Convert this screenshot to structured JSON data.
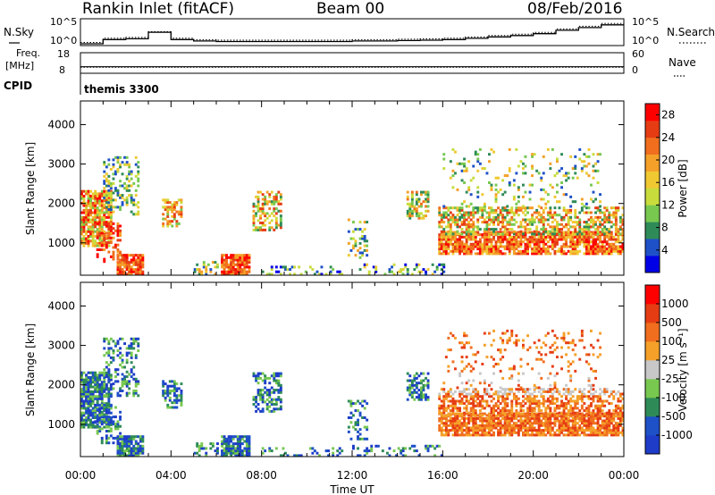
{
  "header": {
    "station": "Rankin Inlet (fitACF)",
    "beam": "Beam 00",
    "date": "08/Feb/2016"
  },
  "top_panels": {
    "nsky_label": "N.Sky",
    "nsky_ticks": [
      "10^5",
      "10^0"
    ],
    "nsearch_label": "N.Search",
    "nsearch_ticks": [
      "10^5",
      "10^0"
    ],
    "freq_label_1": "Freq.",
    "freq_label_2": "[MHz]",
    "freq_ticks": [
      "18",
      "8"
    ],
    "nave_label": "Nave",
    "nave_ticks": [
      "60",
      "0"
    ],
    "cpid_label": "CPID",
    "cpid_value": "themis 3300"
  },
  "colors": {
    "power_scale": [
      "#0000e6",
      "#1e50c8",
      "#2e8b57",
      "#78c850",
      "#c8dc3c",
      "#f0c832",
      "#f5a028",
      "#f06e1e",
      "#e63c14",
      "#ff0000"
    ],
    "velocity_scale": [
      "#1e3cc8",
      "#1e50c8",
      "#2e8b57",
      "#78c850",
      "#c8c8c8",
      "#f5a028",
      "#f06e1e",
      "#e63c14",
      "#ff0000"
    ],
    "ground_scatter": "#c0c0c0"
  },
  "chart_data": [
    {
      "type": "line",
      "title": "",
      "series": [
        {
          "name": "N.Sky",
          "values": [
            1,
            8,
            12,
            300,
            8,
            4,
            3,
            3,
            3,
            3,
            3,
            3,
            4,
            4,
            5,
            6,
            8,
            15,
            30,
            60,
            150,
            800,
            3000,
            12000
          ]
        },
        {
          "name": "N.Search",
          "values": [
            1,
            8,
            12,
            200,
            8,
            4,
            3,
            3,
            3,
            3,
            3,
            3,
            4,
            4,
            5,
            6,
            8,
            15,
            30,
            60,
            150,
            800,
            3000,
            12000
          ]
        }
      ],
      "x": [
        "00:00",
        "01:00",
        "02:00",
        "03:00",
        "04:00",
        "05:00",
        "06:00",
        "07:00",
        "08:00",
        "09:00",
        "10:00",
        "11:00",
        "12:00",
        "13:00",
        "14:00",
        "15:00",
        "16:00",
        "17:00",
        "18:00",
        "19:00",
        "20:00",
        "21:00",
        "22:00",
        "23:00"
      ],
      "ylim": [
        1,
        100000
      ],
      "scale": "log"
    },
    {
      "type": "line",
      "xlabel": "",
      "ylabel": "",
      "series": [
        {
          "name": "Freq.",
          "values": [
            10.8,
            10.8,
            10.8,
            10.8,
            10.8,
            10.8
          ]
        },
        {
          "name": "Nave",
          "values": [
            15,
            15,
            15,
            15,
            15,
            15
          ]
        }
      ],
      "ylim": [
        8,
        18
      ]
    },
    {
      "type": "heatmap",
      "xlabel": "",
      "ylabel": "Slant Range [km]",
      "x_ticks": [
        "00:00",
        "04:00",
        "08:00",
        "12:00",
        "16:00",
        "20:00",
        "00:00"
      ],
      "y_ticks": [
        1000,
        2000,
        3000,
        4000
      ],
      "ylim": [
        180,
        4600
      ],
      "colorbar_label": "Power [dB]",
      "colorbar_ticks": [
        4,
        8,
        12,
        16,
        20,
        24,
        28
      ],
      "colorbar_range": [
        0,
        30
      ]
    },
    {
      "type": "heatmap",
      "xlabel": "Time UT",
      "ylabel": "Slant Range [km]",
      "x_ticks": [
        "00:00",
        "04:00",
        "08:00",
        "12:00",
        "16:00",
        "20:00",
        "00:00"
      ],
      "y_ticks": [
        1000,
        2000,
        3000,
        4000
      ],
      "ylim": [
        180,
        4600
      ],
      "colorbar_label": "Velocity [m s⁻¹]",
      "colorbar_ticks": [
        "1000",
        "500",
        "100",
        "25",
        "-25",
        "-100",
        "-500",
        "-1000"
      ]
    }
  ]
}
